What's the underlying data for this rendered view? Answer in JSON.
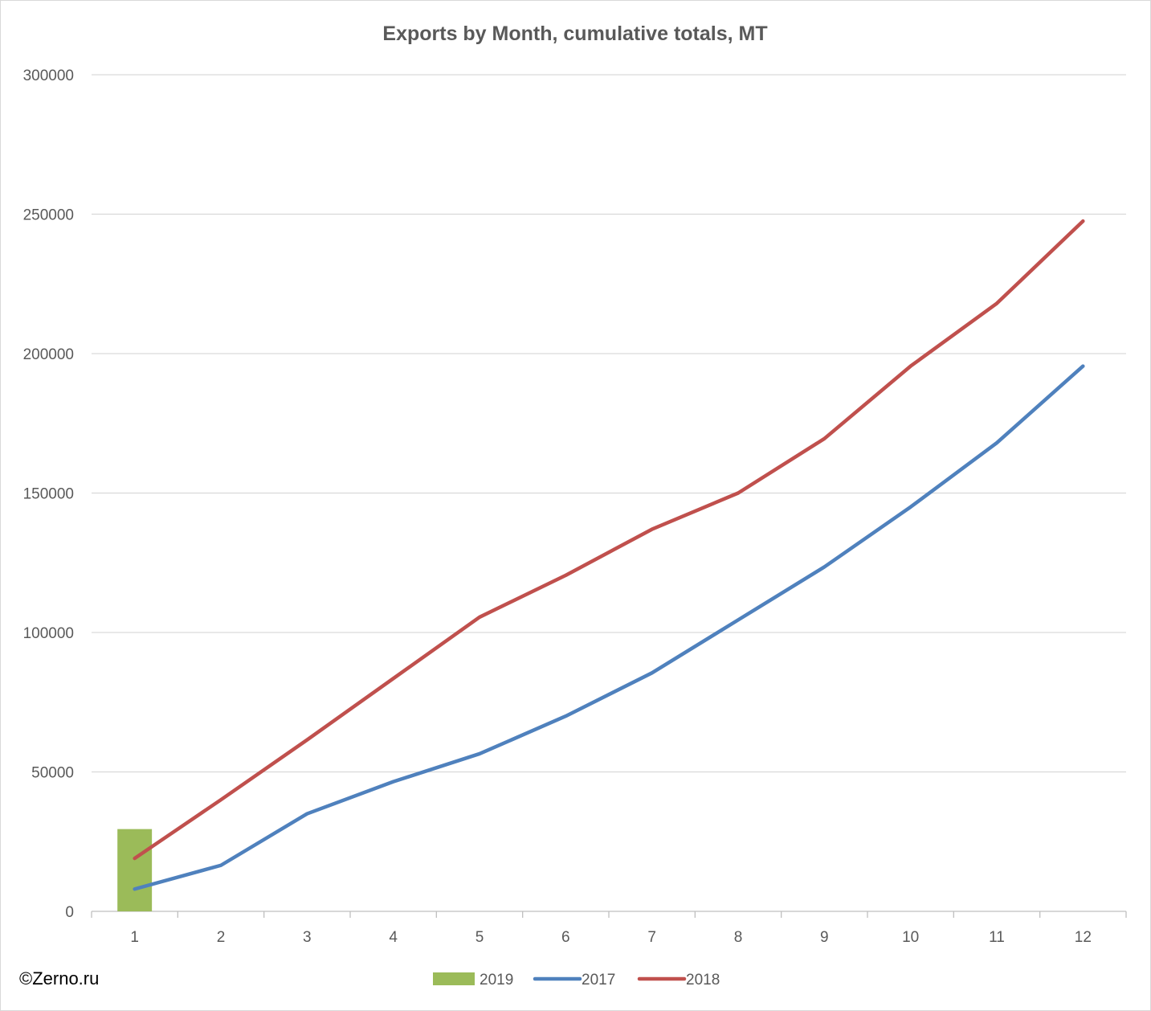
{
  "chart_data": {
    "type": "bar",
    "title": "Exports by Month, cumulative totals, MT",
    "xlabel": "",
    "ylabel": "",
    "categories": [
      "1",
      "2",
      "3",
      "4",
      "5",
      "6",
      "7",
      "8",
      "9",
      "10",
      "11",
      "12"
    ],
    "ylim": [
      0,
      300000
    ],
    "yticks": [
      "0",
      "50000",
      "100000",
      "150000",
      "200000",
      "250000",
      "300000"
    ],
    "grid": true,
    "legend_position": "bottom",
    "series": [
      {
        "name": "2019",
        "type": "bar",
        "color": "#9BBB59",
        "values": [
          29500,
          null,
          null,
          null,
          null,
          null,
          null,
          null,
          null,
          null,
          null,
          null
        ]
      },
      {
        "name": "2017",
        "type": "line",
        "color": "#4F81BD",
        "values": [
          8000,
          16500,
          35000,
          46500,
          56500,
          70000,
          85500,
          104500,
          123500,
          145000,
          168000,
          195500
        ]
      },
      {
        "name": "2018",
        "type": "line",
        "color": "#C0504D",
        "values": [
          19000,
          40000,
          61500,
          83500,
          105500,
          120500,
          137000,
          150000,
          169500,
          195500,
          218000,
          247500
        ]
      }
    ]
  },
  "copyright": "©Zerno.ru"
}
